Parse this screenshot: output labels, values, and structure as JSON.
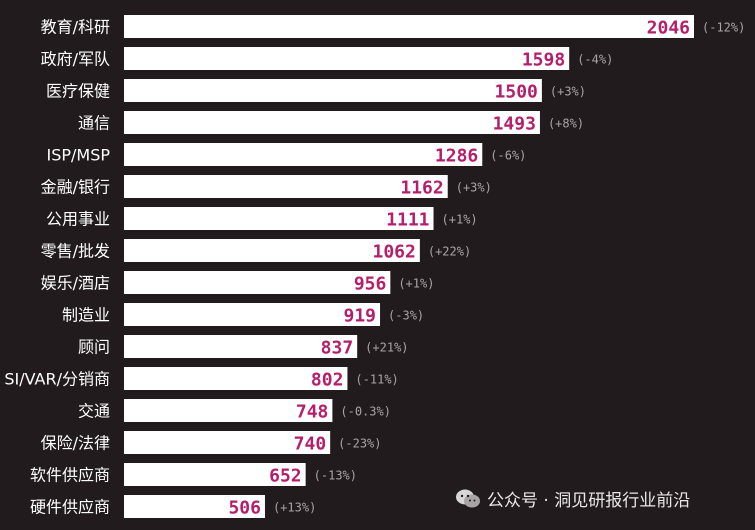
{
  "chart_data": {
    "type": "bar",
    "orientation": "horizontal",
    "categories": [
      "教育/科研",
      "政府/军队",
      "医疗保健",
      "通信",
      "ISP/MSP",
      "金融/银行",
      "公用事业",
      "零售/批发",
      "娱乐/酒店",
      "制造业",
      "顾问",
      "SI/VAR/分销商",
      "交通",
      "保险/法律",
      "软件供应商",
      "硬件供应商"
    ],
    "values": [
      2046,
      1598,
      1500,
      1493,
      1286,
      1162,
      1111,
      1062,
      956,
      919,
      837,
      802,
      748,
      740,
      652,
      506
    ],
    "value_labels": [
      "2046",
      "1598",
      "1500",
      "1493",
      "1286",
      "1162",
      "1111",
      "1062",
      "956",
      "919",
      "837",
      "802",
      "748",
      "740",
      "652",
      "506"
    ],
    "changes": [
      "(-12%)",
      "(-4%)",
      "(+3%)",
      "(+8%)",
      "(-6%)",
      "(+3%)",
      "(+1%)",
      "(+22%)",
      "(+1%)",
      "(-3%)",
      "(+21%)",
      "(-11%)",
      "(-0.3%)",
      "(-23%)",
      "(-13%)",
      "(+13%)"
    ],
    "xlim": [
      0,
      2046
    ],
    "grid": false,
    "legend": "none"
  },
  "colors": {
    "background": "#221b1e",
    "bar": "#ffffff",
    "value_text": "#b51e6b",
    "change_text": "#a9a3a6",
    "label_text": "#ffffff"
  },
  "watermark": {
    "icon": "wechat-icon",
    "text": "公众号 · 洞见研报行业前沿"
  }
}
